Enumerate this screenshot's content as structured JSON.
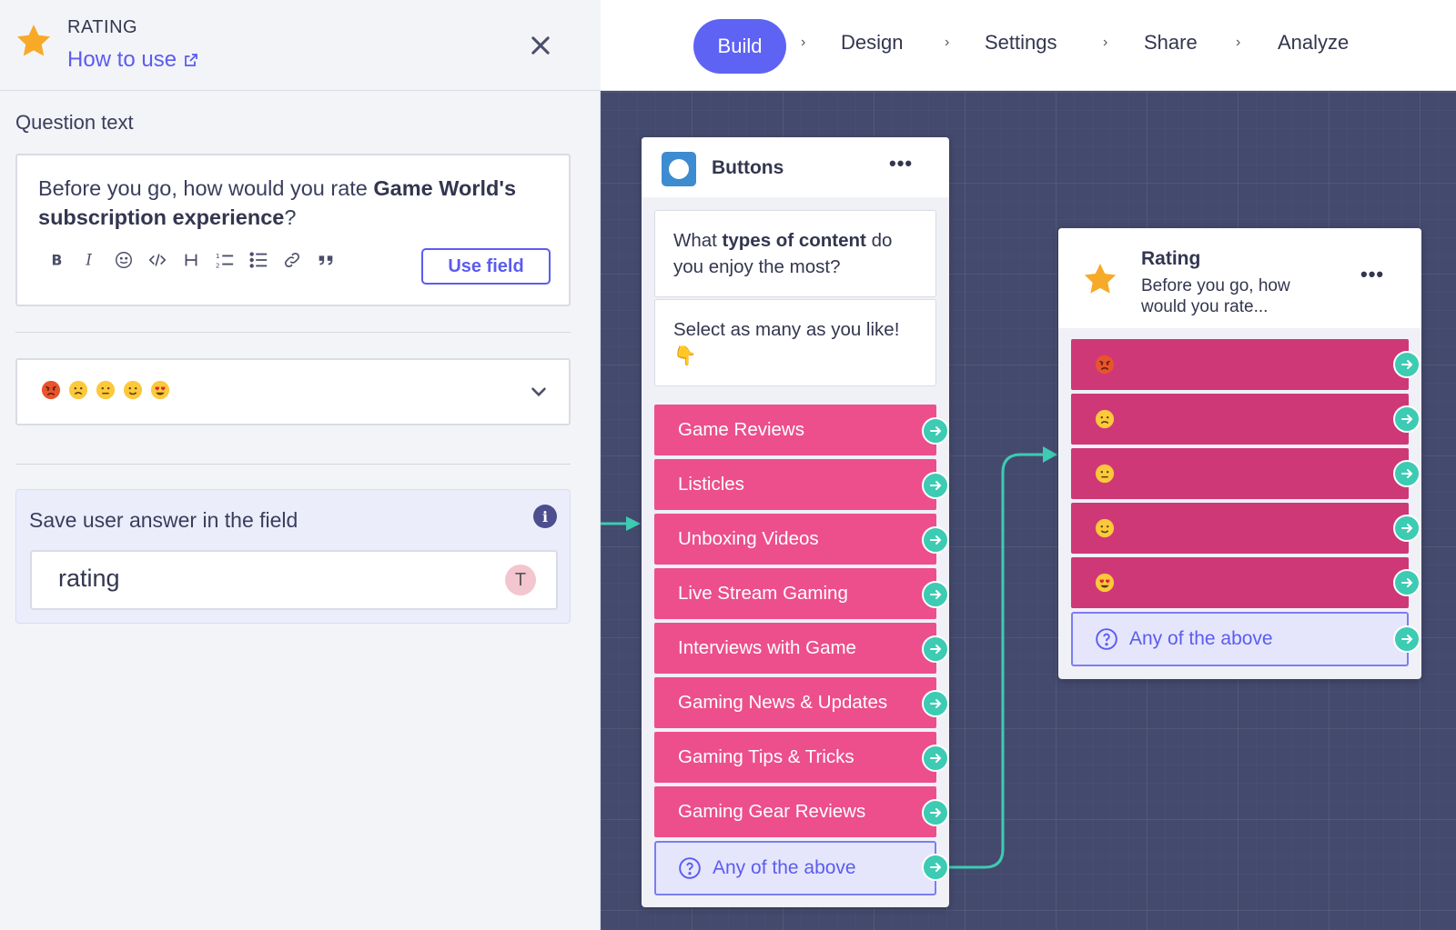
{
  "sidebar": {
    "type_label": "RATING",
    "how_to_use": "How to use",
    "question_label": "Question text",
    "question": {
      "part1": "Before you go, how would you rate ",
      "bold": "Game World's subscription experience",
      "part2": "?"
    },
    "use_field_label": "Use field",
    "emoji_scale": [
      "angry-face",
      "frowning-face",
      "neutral-face",
      "smiling-face",
      "heart-eyes-face"
    ],
    "save_label": "Save user answer in the field",
    "field_value": "rating",
    "field_badge": "T"
  },
  "nav": {
    "steps": [
      "Build",
      "Design",
      "Settings",
      "Share",
      "Analyze"
    ],
    "active": "Build",
    "separator": "›"
  },
  "buttons_card": {
    "title": "Buttons",
    "message1": {
      "part1": "What ",
      "bold": "types of content",
      "part2": " do you enjoy the most?"
    },
    "message2": "Select as many as you like! 👇",
    "options": [
      "Game Reviews",
      "Listicles",
      "Unboxing Videos",
      "Live Stream Gaming",
      "Interviews with Game",
      "Gaming News & Updates",
      "Gaming Tips & Tricks",
      "Gaming Gear Reviews"
    ],
    "any_label": "Any of the above"
  },
  "rating_card": {
    "title": "Rating",
    "subtitle": "Before you go, how would you rate...",
    "options": [
      "angry-face",
      "frowning-face",
      "neutral-face",
      "smiling-face",
      "heart-eyes-face"
    ],
    "any_label": "Any of the above"
  },
  "colors": {
    "accent": "#5e63f4",
    "option_pink": "#ec4f8c",
    "rating_pink": "#cf3876",
    "connector_teal": "#3dcbb3",
    "canvas_bg": "#444a6e"
  }
}
